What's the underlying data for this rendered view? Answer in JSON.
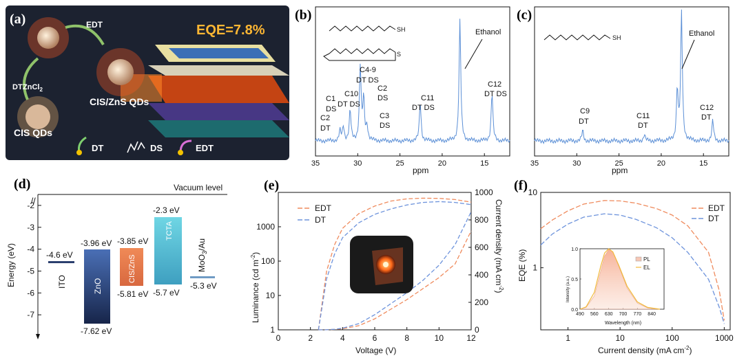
{
  "panels": {
    "a": {
      "label": "(a)",
      "eqe_text": "EQE=7.8%",
      "edt_text": "EDT",
      "dt_text": "DT",
      "zncl_text": "ZnCl",
      "zncl_sub": "2",
      "cis_qds": "CIS QDs",
      "cis_zns_qds": "CIS/ZnS QDs",
      "legend": {
        "dt": "DT",
        "ds": "DS",
        "edt": "EDT"
      },
      "colors": {
        "bg": "#1c2230",
        "qd_core": "#d9b89a",
        "ligand": "#ff5a1f",
        "glow": "#ff7a1a",
        "eqe": "#ffb733"
      }
    },
    "b": {
      "label": "(b)",
      "xlabel": "ppm",
      "ethanol": "Ethanol",
      "mol_sh": "SH",
      "mol_s": "S",
      "peaks": [
        "C2 DT",
        "C1 DS",
        "C10 DT DS",
        "C4-9 DT DS",
        "C2 DS",
        "C3 DS",
        "C11 DT DS",
        "C12 DT DS"
      ]
    },
    "c": {
      "label": "(c)",
      "xlabel": "ppm",
      "ethanol": "Ethanol",
      "mol_sh": "SH",
      "peaks": [
        "C9 DT",
        "C11 DT",
        "C12 DT"
      ]
    },
    "d": {
      "label": "(d)",
      "ylabel": "Energy (eV)",
      "vacuum": "Vacuum level",
      "layers": [
        {
          "name": "ITO",
          "top": "-4.6 eV"
        },
        {
          "name": "ZnO",
          "top": "-3.96 eV",
          "bottom": "-7.62 eV"
        },
        {
          "name": "CIS/ZnS",
          "top": "-3.85 eV",
          "bottom": "-5.81 eV"
        },
        {
          "name": "TCTA",
          "top": "-2.3 eV",
          "bottom": "-5.7 eV"
        },
        {
          "name": "MoO",
          "sub": "3",
          "suffix": "/Au",
          "top": "-5.3 eV"
        }
      ]
    },
    "e": {
      "label": "(e)",
      "xlabel": "Voltage (V)",
      "ylabel_left": "Luminance (cd m",
      "ylabel_left_sup": "-2",
      "ylabel_right": "Current density (mA cm",
      "ylabel_right_sup": "-2",
      "legend": [
        "EDT",
        "DT"
      ]
    },
    "f": {
      "label": "(f)",
      "xlabel": "Current density (mA cm",
      "xlabel_sup": "-2",
      "ylabel": "EQE (%)",
      "legend": [
        "EDT",
        "DT"
      ],
      "inset": {
        "xlabel": "Wavelength (nm)",
        "ylabel": "Intensity (a.u.)",
        "legend": [
          "PL",
          "EL"
        ]
      }
    }
  },
  "chart_data": [
    {
      "type": "line",
      "panel": "b",
      "title": "",
      "xlabel": "ppm",
      "xlim": [
        35,
        12
      ],
      "x_ticks": [
        "35",
        "30",
        "25",
        "20",
        "15"
      ],
      "series": [
        {
          "peaks_ppm": [
            32.1,
            31.7,
            30.9,
            29.7,
            29.3,
            28.9,
            22.6,
            17.9,
            14.1
          ],
          "peaks_rel_height": [
            0.08,
            0.12,
            0.25,
            0.62,
            0.34,
            0.12,
            0.32,
            1.0,
            0.4
          ]
        }
      ],
      "colors": [
        "#5b8fd6"
      ]
    },
    {
      "type": "line",
      "panel": "c",
      "title": "",
      "xlabel": "ppm",
      "xlim": [
        35,
        12
      ],
      "x_ticks": [
        "35",
        "30",
        "25",
        "20",
        "15"
      ],
      "series": [
        {
          "peaks_ppm": [
            29.3,
            22.0,
            18.1,
            17.6,
            13.9
          ],
          "peaks_rel_height": [
            0.08,
            0.05,
            0.4,
            1.0,
            0.16
          ]
        }
      ],
      "colors": [
        "#5b8fd6"
      ]
    },
    {
      "type": "bar",
      "panel": "d",
      "title": "",
      "ylabel": "Energy (eV)",
      "ylim": [
        -8,
        -1.5
      ],
      "y_ticks": [
        "-2",
        "-3",
        "-4",
        "-5",
        "-6",
        "-7"
      ],
      "categories": [
        "ITO",
        "ZnO",
        "CIS/ZnS",
        "TCTA",
        "MoO3/Au"
      ],
      "top_values": [
        -4.6,
        -3.96,
        -3.85,
        -2.3,
        -5.3
      ],
      "bottom_values": [
        -4.6,
        -7.62,
        -5.81,
        -5.7,
        -5.3
      ],
      "colors": [
        "#2b3f6e",
        "#3b5a96",
        "#e77a4f",
        "#5ec3d6",
        "#6f9bc4"
      ]
    },
    {
      "type": "line",
      "panel": "e",
      "title": "",
      "xlabel": "Voltage (V)",
      "ylabel": "Luminance (cd m-2)",
      "ylabel_right": "Current density (mA cm-2)",
      "xlim": [
        0,
        12
      ],
      "ylim": [
        1,
        10000
      ],
      "ylim_right": [
        0,
        1000
      ],
      "y_scale": "log",
      "x_ticks": [
        "0",
        "2",
        "4",
        "6",
        "8",
        "10",
        "12"
      ],
      "y_ticks": [
        "1",
        "10",
        "100",
        "1000"
      ],
      "y_ticks_right": [
        "0",
        "200",
        "400",
        "600",
        "800",
        "1000"
      ],
      "x": [
        2.5,
        3,
        3.5,
        4,
        5,
        6,
        7,
        8,
        9,
        10,
        11,
        12
      ],
      "series": [
        {
          "name": "EDT",
          "axis": "left",
          "values": [
            1,
            50,
            300,
            900,
            2400,
            4000,
            5600,
            6500,
            6800,
            6700,
            6200,
            5200
          ]
        },
        {
          "name": "DT",
          "axis": "left",
          "values": [
            1,
            30,
            160,
            480,
            1300,
            2300,
            3300,
            4300,
            5100,
            5400,
            5100,
            4400
          ]
        },
        {
          "name": "EDT",
          "axis": "right",
          "values": [
            0,
            1,
            3,
            8,
            30,
            80,
            150,
            220,
            300,
            380,
            480,
            720
          ]
        },
        {
          "name": "DT",
          "axis": "right",
          "values": [
            0,
            1,
            4,
            12,
            45,
            110,
            190,
            270,
            360,
            470,
            620,
            860
          ]
        }
      ],
      "colors": [
        "#ef8a5c",
        "#6d93dc"
      ]
    },
    {
      "type": "line",
      "panel": "f",
      "title": "",
      "xlabel": "Current density (mA cm-2)",
      "ylabel": "EQE (%)",
      "xlim": [
        0.3,
        1300
      ],
      "ylim": [
        0.15,
        10
      ],
      "x_scale": "log",
      "y_scale": "log",
      "x_ticks": [
        "1",
        "10",
        "100",
        "1000"
      ],
      "y_ticks": [
        "1",
        "10"
      ],
      "x": [
        0.3,
        0.5,
        1,
        2,
        5,
        10,
        20,
        50,
        100,
        200,
        500,
        800,
        1000
      ],
      "series": [
        {
          "name": "EDT",
          "values": [
            3.3,
            4.3,
            5.7,
            7.0,
            7.8,
            7.7,
            7.2,
            6.1,
            5.0,
            3.6,
            1.6,
            0.5,
            0.2
          ]
        },
        {
          "name": "DT",
          "values": [
            2.0,
            2.8,
            3.8,
            4.7,
            5.2,
            5.0,
            4.4,
            3.4,
            2.5,
            1.6,
            0.7,
            0.3,
            0.18
          ]
        }
      ],
      "colors": [
        "#ef8a5c",
        "#6d93dc"
      ]
    },
    {
      "type": "area",
      "panel": "f-inset",
      "title": "",
      "xlabel": "Wavelength (nm)",
      "ylabel": "Intensity (a.u.)",
      "xlim": [
        490,
        900
      ],
      "ylim": [
        0,
        1.0
      ],
      "x_ticks": [
        "490",
        "560",
        "630",
        "700",
        "770",
        "840"
      ],
      "y_ticks": [
        "0.0",
        "0.5",
        "1.0"
      ],
      "x": [
        490,
        520,
        560,
        590,
        610,
        630,
        650,
        680,
        720,
        770,
        820,
        880
      ],
      "series": [
        {
          "name": "PL",
          "values": [
            0.0,
            0.03,
            0.22,
            0.62,
            0.88,
            0.99,
            0.95,
            0.7,
            0.35,
            0.1,
            0.02,
            0.0
          ]
        },
        {
          "name": "EL",
          "values": [
            0.0,
            0.04,
            0.28,
            0.7,
            0.93,
            1.0,
            0.95,
            0.72,
            0.38,
            0.12,
            0.03,
            0.0
          ]
        }
      ],
      "colors": [
        "#f7c7b6",
        "#f2b93a"
      ]
    }
  ]
}
